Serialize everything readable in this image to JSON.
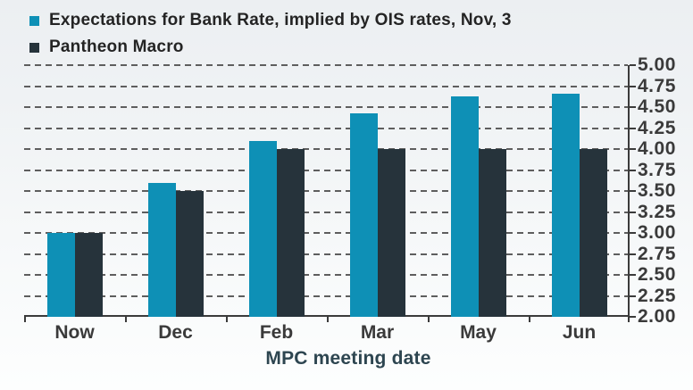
{
  "legend": {
    "items": [
      {
        "label": "Expectations for Bank Rate, implied by OIS rates, Nov, 3",
        "color": "#0e90b6"
      },
      {
        "label": "Pantheon Macro",
        "color": "#26333b"
      }
    ]
  },
  "chart_data": {
    "type": "bar",
    "title": "",
    "xlabel": "MPC meeting date",
    "ylabel": "",
    "categories": [
      "Now",
      "Dec",
      "Feb",
      "Mar",
      "May",
      "Jun"
    ],
    "series": [
      {
        "name": "Expectations for Bank Rate, implied by OIS rates, Nov, 3",
        "color": "#0e90b6",
        "values": [
          3.0,
          3.6,
          4.1,
          4.43,
          4.63,
          4.66
        ]
      },
      {
        "name": "Pantheon Macro",
        "color": "#26333b",
        "values": [
          3.0,
          3.5,
          4.0,
          4.0,
          4.0,
          4.0
        ]
      }
    ],
    "ylim": [
      2.0,
      5.0
    ],
    "ytick_step": 0.25,
    "ytick_labels": [
      "5.00",
      "4.75",
      "4.50",
      "4.25",
      "4.00",
      "3.75",
      "3.50",
      "3.25",
      "3.00",
      "2.75",
      "2.50",
      "2.25",
      "2.00"
    ],
    "grid": "horizontal-dashed",
    "legend_position": "top-left",
    "y_axis_side": "right",
    "colors": {
      "grid": "#5e5e5e",
      "axis": "#3b3b3b",
      "tick_text": "#3a3a3a",
      "xlabel_text": "#2d4550"
    }
  }
}
